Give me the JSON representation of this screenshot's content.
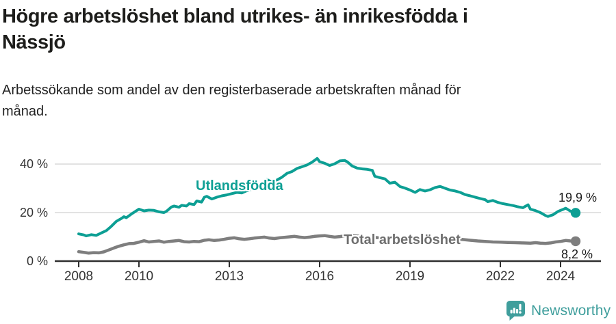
{
  "header": {
    "title": "Högre arbetslöshet bland utrikes- än inrikesfödda i\nNässjö",
    "subtitle": "Arbetssökande som andel av den registerbaserade arbetskraften månad för\nmånad."
  },
  "chart_data": {
    "type": "line",
    "title": "Högre arbetslöshet bland utrikes- än inrikesfödda i Nässjö",
    "subtitle": "Arbetssökande som andel av den registerbaserade arbetskraften månad för månad.",
    "grid": "horizontal-only",
    "legend_position": "inline-labels-on-lines",
    "x_axis": {
      "ticks": [
        2008,
        2010,
        2013,
        2016,
        2019,
        2022,
        2024
      ],
      "tick_labels": [
        "2008",
        "2010",
        "2013",
        "2016",
        "2019",
        "2022",
        "2024"
      ],
      "range": [
        2007.2,
        2024.85
      ],
      "unit": "year-month"
    },
    "y_axis": {
      "ticks": [
        0,
        20,
        40
      ],
      "tick_labels": [
        "0 %",
        "20 %",
        "40 %"
      ],
      "range": [
        0,
        46
      ],
      "unit": "percent"
    },
    "series": [
      {
        "name": "Utlandsfödda",
        "color": "#0d9f94",
        "end_label": "19,9 %",
        "end_value": 19.9,
        "points": [
          [
            2008.0,
            11.2
          ],
          [
            2008.17,
            10.8
          ],
          [
            2008.25,
            10.4
          ],
          [
            2008.42,
            10.9
          ],
          [
            2008.58,
            10.6
          ],
          [
            2008.75,
            11.6
          ],
          [
            2008.92,
            12.6
          ],
          [
            2009.08,
            14.3
          ],
          [
            2009.25,
            16.4
          ],
          [
            2009.42,
            17.6
          ],
          [
            2009.5,
            18.3
          ],
          [
            2009.58,
            17.9
          ],
          [
            2009.75,
            19.4
          ],
          [
            2009.92,
            20.8
          ],
          [
            2010.0,
            21.4
          ],
          [
            2010.17,
            20.7
          ],
          [
            2010.33,
            21.0
          ],
          [
            2010.5,
            20.9
          ],
          [
            2010.67,
            20.3
          ],
          [
            2010.83,
            20.0
          ],
          [
            2010.92,
            20.6
          ],
          [
            2011.08,
            22.3
          ],
          [
            2011.17,
            22.7
          ],
          [
            2011.33,
            22.2
          ],
          [
            2011.42,
            23.0
          ],
          [
            2011.58,
            22.7
          ],
          [
            2011.67,
            23.7
          ],
          [
            2011.83,
            23.3
          ],
          [
            2011.92,
            24.8
          ],
          [
            2012.08,
            24.3
          ],
          [
            2012.17,
            26.3
          ],
          [
            2012.25,
            26.7
          ],
          [
            2012.42,
            25.6
          ],
          [
            2012.58,
            26.3
          ],
          [
            2012.75,
            26.9
          ],
          [
            2012.92,
            27.3
          ],
          [
            2013.08,
            27.8
          ],
          [
            2013.25,
            28.3
          ],
          [
            2013.42,
            28.1
          ],
          [
            2013.58,
            29.0
          ],
          [
            2013.75,
            29.6
          ],
          [
            2013.92,
            30.4
          ],
          [
            2014.08,
            31.2
          ],
          [
            2014.25,
            33.6
          ],
          [
            2014.42,
            32.5
          ],
          [
            2014.58,
            33.4
          ],
          [
            2014.75,
            34.6
          ],
          [
            2014.92,
            36.2
          ],
          [
            2015.08,
            36.9
          ],
          [
            2015.25,
            38.2
          ],
          [
            2015.42,
            38.9
          ],
          [
            2015.58,
            39.6
          ],
          [
            2015.75,
            40.8
          ],
          [
            2015.92,
            42.3
          ],
          [
            2016.0,
            41.0
          ],
          [
            2016.17,
            40.3
          ],
          [
            2016.33,
            39.4
          ],
          [
            2016.5,
            40.1
          ],
          [
            2016.67,
            41.3
          ],
          [
            2016.83,
            41.5
          ],
          [
            2016.92,
            40.9
          ],
          [
            2017.08,
            39.2
          ],
          [
            2017.25,
            38.3
          ],
          [
            2017.42,
            38.0
          ],
          [
            2017.58,
            37.8
          ],
          [
            2017.75,
            37.4
          ],
          [
            2017.83,
            35.0
          ],
          [
            2018.0,
            34.4
          ],
          [
            2018.17,
            33.9
          ],
          [
            2018.33,
            32.1
          ],
          [
            2018.5,
            32.5
          ],
          [
            2018.67,
            30.7
          ],
          [
            2018.83,
            30.1
          ],
          [
            2019.0,
            29.3
          ],
          [
            2019.17,
            28.3
          ],
          [
            2019.33,
            29.5
          ],
          [
            2019.5,
            28.9
          ],
          [
            2019.67,
            29.4
          ],
          [
            2019.83,
            30.3
          ],
          [
            2020.0,
            30.8
          ],
          [
            2020.17,
            30.0
          ],
          [
            2020.33,
            29.3
          ],
          [
            2020.5,
            28.9
          ],
          [
            2020.67,
            28.3
          ],
          [
            2020.83,
            27.4
          ],
          [
            2021.0,
            26.9
          ],
          [
            2021.17,
            26.3
          ],
          [
            2021.33,
            25.8
          ],
          [
            2021.5,
            25.3
          ],
          [
            2021.58,
            24.5
          ],
          [
            2021.75,
            25.0
          ],
          [
            2021.92,
            24.2
          ],
          [
            2022.08,
            23.7
          ],
          [
            2022.25,
            23.3
          ],
          [
            2022.42,
            22.9
          ],
          [
            2022.58,
            22.4
          ],
          [
            2022.75,
            22.0
          ],
          [
            2022.92,
            23.2
          ],
          [
            2023.0,
            21.4
          ],
          [
            2023.17,
            20.8
          ],
          [
            2023.33,
            20.0
          ],
          [
            2023.5,
            18.8
          ],
          [
            2023.58,
            18.4
          ],
          [
            2023.75,
            19.1
          ],
          [
            2023.92,
            20.5
          ],
          [
            2024.08,
            21.3
          ],
          [
            2024.17,
            21.8
          ],
          [
            2024.33,
            20.6
          ],
          [
            2024.5,
            19.9
          ]
        ]
      },
      {
        "name": "Total arbetslöshet",
        "color": "#7e7e7e",
        "end_label": "8,2 %",
        "end_value": 8.2,
        "points": [
          [
            2008.0,
            3.9
          ],
          [
            2008.17,
            3.6
          ],
          [
            2008.33,
            3.3
          ],
          [
            2008.5,
            3.5
          ],
          [
            2008.67,
            3.4
          ],
          [
            2008.83,
            3.8
          ],
          [
            2009.0,
            4.6
          ],
          [
            2009.17,
            5.4
          ],
          [
            2009.33,
            6.1
          ],
          [
            2009.5,
            6.7
          ],
          [
            2009.67,
            7.2
          ],
          [
            2009.83,
            7.3
          ],
          [
            2010.0,
            7.8
          ],
          [
            2010.17,
            8.4
          ],
          [
            2010.33,
            7.9
          ],
          [
            2010.5,
            8.1
          ],
          [
            2010.67,
            8.3
          ],
          [
            2010.83,
            7.8
          ],
          [
            2011.0,
            8.1
          ],
          [
            2011.17,
            8.3
          ],
          [
            2011.33,
            8.5
          ],
          [
            2011.5,
            8.0
          ],
          [
            2011.67,
            7.9
          ],
          [
            2011.83,
            8.1
          ],
          [
            2012.0,
            8.0
          ],
          [
            2012.17,
            8.6
          ],
          [
            2012.33,
            8.8
          ],
          [
            2012.5,
            8.5
          ],
          [
            2012.67,
            8.7
          ],
          [
            2012.83,
            9.0
          ],
          [
            2013.0,
            9.4
          ],
          [
            2013.17,
            9.6
          ],
          [
            2013.33,
            9.2
          ],
          [
            2013.5,
            9.0
          ],
          [
            2013.67,
            9.2
          ],
          [
            2013.83,
            9.5
          ],
          [
            2014.0,
            9.7
          ],
          [
            2014.17,
            9.9
          ],
          [
            2014.33,
            9.5
          ],
          [
            2014.5,
            9.3
          ],
          [
            2014.67,
            9.6
          ],
          [
            2014.83,
            9.8
          ],
          [
            2015.0,
            10.0
          ],
          [
            2015.17,
            10.2
          ],
          [
            2015.33,
            9.9
          ],
          [
            2015.5,
            9.7
          ],
          [
            2015.67,
            9.9
          ],
          [
            2015.83,
            10.2
          ],
          [
            2016.0,
            10.4
          ],
          [
            2016.17,
            10.5
          ],
          [
            2016.33,
            10.2
          ],
          [
            2016.5,
            9.9
          ],
          [
            2016.67,
            10.1
          ],
          [
            2016.83,
            10.4
          ],
          [
            2017.0,
            10.5
          ],
          [
            2017.25,
            10.3
          ],
          [
            2017.5,
            10.0
          ],
          [
            2017.75,
            9.8
          ],
          [
            2018.0,
            9.6
          ],
          [
            2018.25,
            9.4
          ],
          [
            2018.5,
            9.2
          ],
          [
            2018.75,
            9.0
          ],
          [
            2019.0,
            9.0
          ],
          [
            2019.25,
            8.8
          ],
          [
            2019.5,
            8.7
          ],
          [
            2019.75,
            8.9
          ],
          [
            2020.0,
            9.2
          ],
          [
            2020.25,
            9.4
          ],
          [
            2020.5,
            9.2
          ],
          [
            2020.75,
            8.9
          ],
          [
            2021.0,
            8.6
          ],
          [
            2021.25,
            8.3
          ],
          [
            2021.5,
            8.1
          ],
          [
            2021.75,
            7.9
          ],
          [
            2022.0,
            7.8
          ],
          [
            2022.25,
            7.7
          ],
          [
            2022.5,
            7.6
          ],
          [
            2022.75,
            7.5
          ],
          [
            2023.0,
            7.4
          ],
          [
            2023.17,
            7.6
          ],
          [
            2023.33,
            7.4
          ],
          [
            2023.5,
            7.3
          ],
          [
            2023.67,
            7.5
          ],
          [
            2023.83,
            7.9
          ],
          [
            2024.0,
            8.1
          ],
          [
            2024.17,
            8.5
          ],
          [
            2024.33,
            8.3
          ],
          [
            2024.5,
            8.2
          ]
        ]
      }
    ],
    "colors": {
      "gridline": "#d9d9d9",
      "axis": "#2e2e2e",
      "tick_text": "#333333"
    }
  },
  "branding": {
    "logo_text": "Newsworthy",
    "logo_color": "#3f9e9c",
    "logo_icon": "newsworthy-chart-bubble-icon"
  }
}
